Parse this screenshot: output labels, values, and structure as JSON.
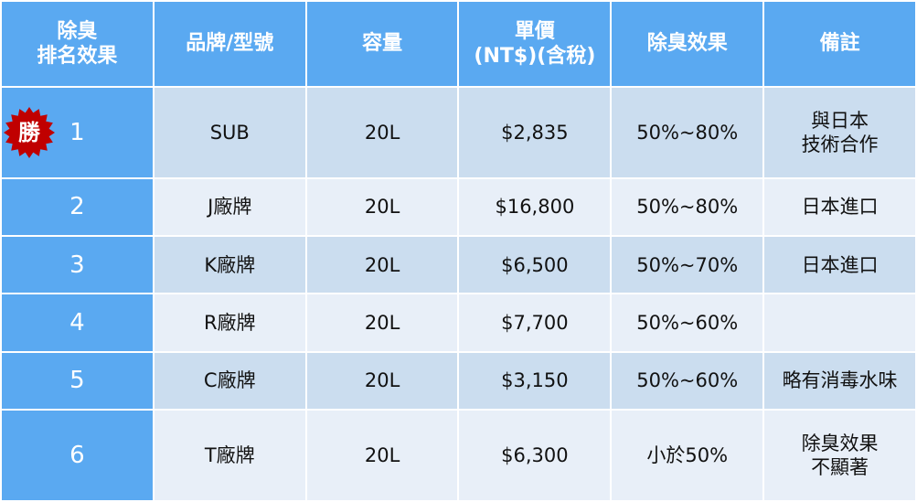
{
  "headers": [
    "除臭\n排名效果",
    "品牌/型號",
    "容量",
    "單價\n(NT$)(含稅)",
    "除臭效果",
    "備註"
  ],
  "winner_badge": {
    "label": "勝",
    "color": "#c00000"
  },
  "rows": [
    {
      "rank": "1",
      "brand": "SUB",
      "capacity": "20L",
      "price": "$2,835",
      "effect": "50%~80%",
      "note": "與日本\n技術合作"
    },
    {
      "rank": "2",
      "brand": "J廠牌",
      "capacity": "20L",
      "price": "$16,800",
      "effect": "50%~80%",
      "note": "日本進口"
    },
    {
      "rank": "3",
      "brand": "K廠牌",
      "capacity": "20L",
      "price": "$6,500",
      "effect": "50%~70%",
      "note": "日本進口"
    },
    {
      "rank": "4",
      "brand": "R廠牌",
      "capacity": "20L",
      "price": "$7,700",
      "effect": "50%~60%",
      "note": ""
    },
    {
      "rank": "5",
      "brand": "C廠牌",
      "capacity": "20L",
      "price": "$3,150",
      "effect": "50%~60%",
      "note": "略有消毒水味"
    },
    {
      "rank": "6",
      "brand": "T廠牌",
      "capacity": "20L",
      "price": "$6,300",
      "effect": "小於50%",
      "note": "除臭效果\n不顯著"
    }
  ]
}
